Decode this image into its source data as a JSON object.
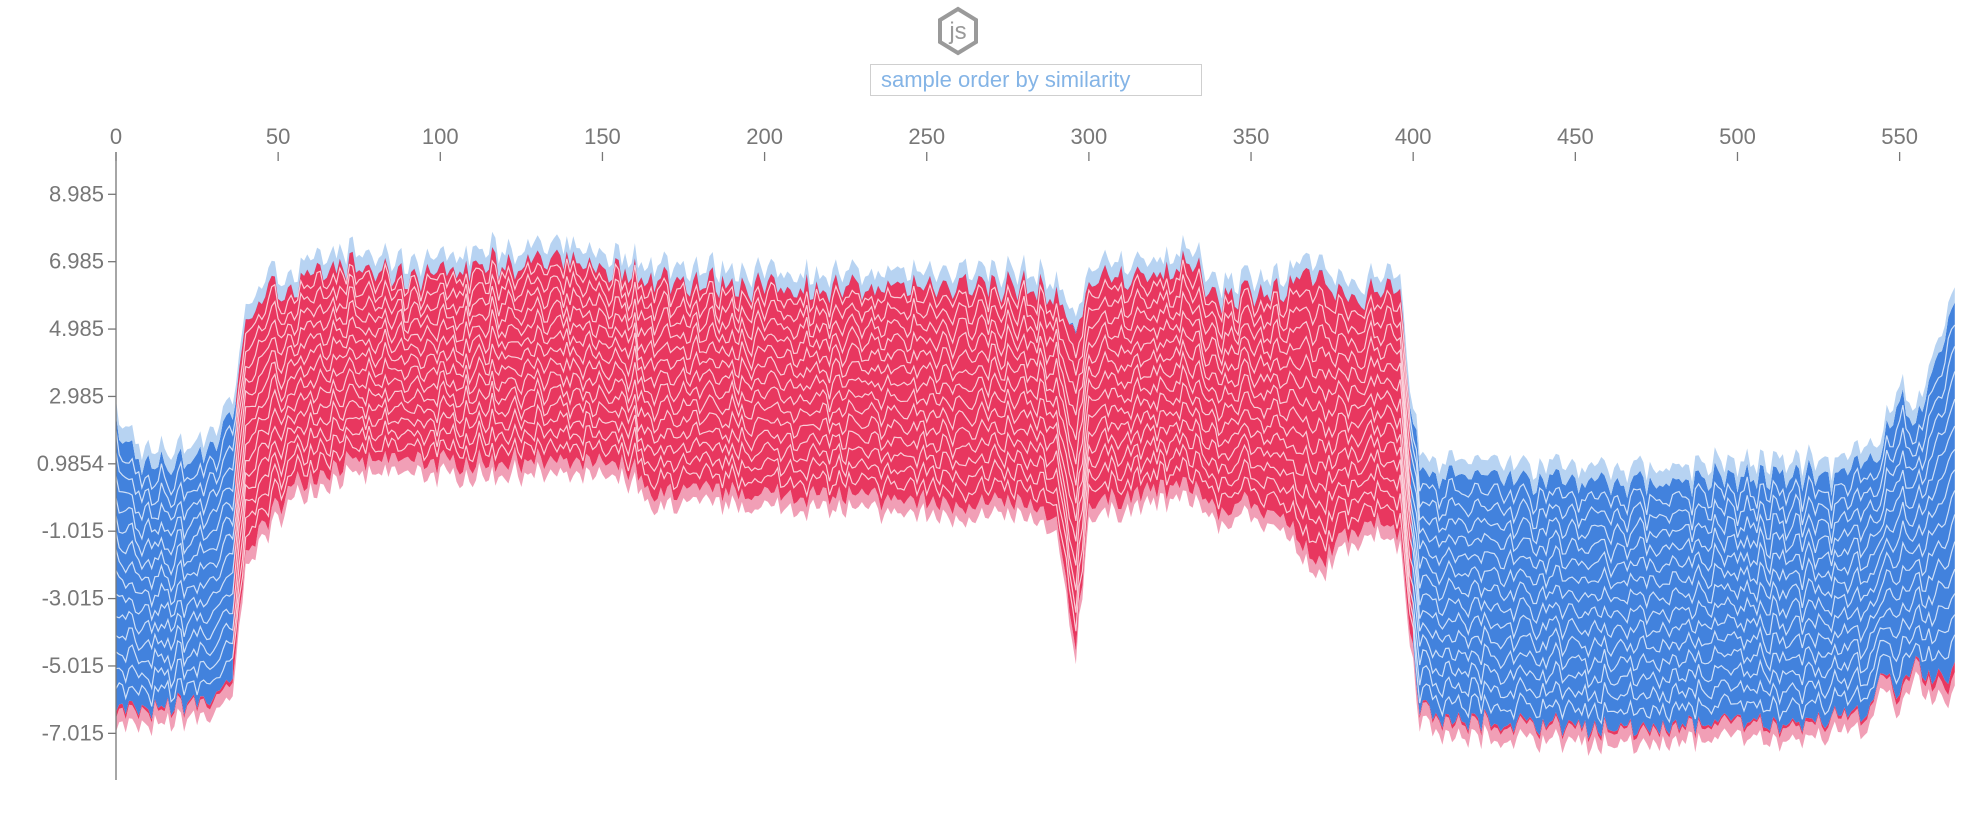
{
  "logo": {
    "text": "js",
    "icon": "js-hexagon-icon",
    "color": "#9a9a9a"
  },
  "controls": {
    "order_select": {
      "selected": "sample order by similarity"
    }
  },
  "colors": {
    "positive_dark": "#e8375f",
    "positive_light": "#f19fb6",
    "negative_dark": "#4282dd",
    "negative_light": "#b7d3f2",
    "separator": "#ffffff"
  },
  "chart_data": {
    "type": "area",
    "stacked": true,
    "sample_count": 568,
    "x_ticks": [
      0,
      50,
      100,
      150,
      200,
      250,
      300,
      350,
      400,
      450,
      500,
      550
    ],
    "y_ticks": [
      8.985,
      6.985,
      4.985,
      2.985,
      0.9854,
      -1.015,
      -3.015,
      -5.015,
      -7.015
    ],
    "y_tick_labels": [
      "8.985",
      "6.985",
      "4.985",
      "2.985",
      "0.9854",
      "-1.015",
      "-3.015",
      "-5.015",
      "-7.015"
    ],
    "xlim": [
      0,
      568
    ],
    "ylim": [
      -8.4,
      10.3
    ],
    "base_value": 0.9854,
    "grid": false,
    "series": [
      {
        "kind": "positive",
        "x": [
          0,
          10,
          20,
          30,
          36,
          40,
          45,
          55,
          70,
          90,
          110,
          125,
          140,
          160,
          166,
          170,
          200,
          230,
          260,
          280,
          290,
          296,
          300,
          320,
          332,
          340,
          350,
          360,
          370,
          380,
          390,
          396,
          400,
          402,
          410,
          440,
          470,
          500,
          520,
          530,
          540,
          545,
          550,
          555,
          560,
          568
        ],
        "y": [
          -6.7,
          -6.9,
          -6.6,
          -6.5,
          -6.0,
          -2.0,
          -1.3,
          0.0,
          0.6,
          0.7,
          0.6,
          0.7,
          0.6,
          0.5,
          -0.6,
          -0.2,
          -0.3,
          -0.4,
          -0.6,
          -0.6,
          -1.2,
          -4.8,
          -0.6,
          -0.2,
          0.0,
          -0.9,
          -0.5,
          -1.0,
          -2.5,
          -1.4,
          -1.0,
          -1.5,
          -5.0,
          -6.6,
          -7.1,
          -7.2,
          -7.4,
          -7.1,
          -7.2,
          -7.0,
          -6.9,
          -5.5,
          -6.5,
          -5.5,
          -6.1,
          -5.8
        ]
      },
      {
        "kind": "negative",
        "x": [
          0,
          10,
          20,
          30,
          36,
          40,
          45,
          55,
          70,
          90,
          110,
          125,
          140,
          160,
          166,
          170,
          200,
          230,
          260,
          280,
          290,
          296,
          300,
          320,
          332,
          340,
          350,
          360,
          370,
          380,
          390,
          396,
          400,
          402,
          410,
          440,
          470,
          500,
          520,
          530,
          540,
          545,
          550,
          555,
          560,
          568
        ],
        "y": [
          2.4,
          1.3,
          1.5,
          2.0,
          3.0,
          5.5,
          6.5,
          6.7,
          7.3,
          7.0,
          7.3,
          7.4,
          7.4,
          7.1,
          6.9,
          6.9,
          6.7,
          6.6,
          6.8,
          6.7,
          6.4,
          5.3,
          6.8,
          7.1,
          7.3,
          6.4,
          6.6,
          6.5,
          7.1,
          6.2,
          6.7,
          6.6,
          2.5,
          1.4,
          1.1,
          1.0,
          0.9,
          1.0,
          1.1,
          1.0,
          1.4,
          2.2,
          3.2,
          2.8,
          4.0,
          6.6
        ]
      }
    ]
  }
}
